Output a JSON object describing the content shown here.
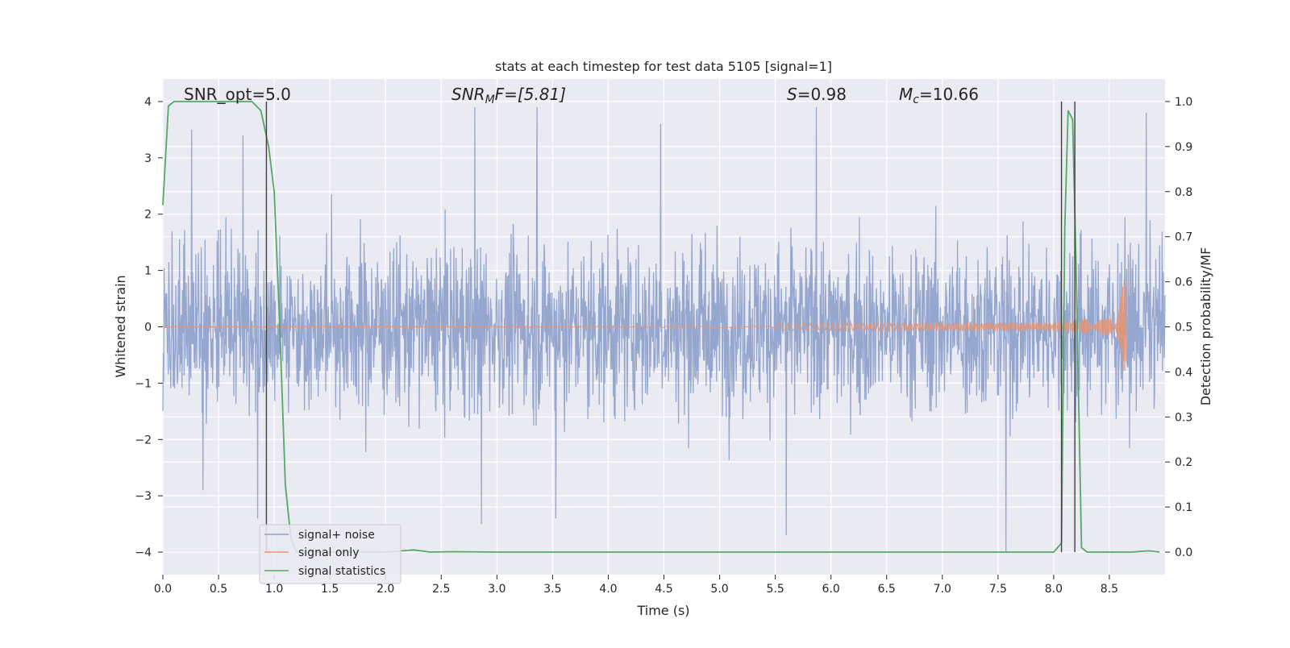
{
  "chart_data": {
    "type": "line",
    "title": "stats at each timestep for test data 5105 [signal=1]",
    "xlabel": "Time (s)",
    "ylabel_left": "Whitened strain",
    "ylabel_right": "Detection probability/MF",
    "xlim": [
      0.0,
      9.0
    ],
    "ylim_left": [
      -4.4,
      4.4
    ],
    "ylim_right": [
      -0.05,
      1.05
    ],
    "grid": true,
    "legend_position": "lower-left",
    "x_ticks": [
      "0.0",
      "0.5",
      "1.0",
      "1.5",
      "2.0",
      "2.5",
      "3.0",
      "3.5",
      "4.0",
      "4.5",
      "5.0",
      "5.5",
      "6.0",
      "6.5",
      "7.0",
      "7.5",
      "8.0",
      "8.5"
    ],
    "y_ticks_left": [
      "−4",
      "−3",
      "−2",
      "−1",
      "0",
      "1",
      "2",
      "3",
      "4"
    ],
    "y_ticks_right": [
      "0.0",
      "0.1",
      "0.2",
      "0.3",
      "0.4",
      "0.5",
      "0.6",
      "0.7",
      "0.8",
      "0.9",
      "1.0"
    ],
    "annotations": {
      "snr_opt": "SNR_opt=5.0",
      "snr_mf_label": "SNR",
      "snr_mf_sub": "M",
      "snr_mf_value": "F=[5.81]",
      "s_label": "S",
      "s_value": "=0.98",
      "mc_label": "M",
      "mc_sub": "c",
      "mc_value": "=10.66"
    },
    "vertical_lines_x": [
      0.93,
      8.07,
      8.19
    ],
    "series": [
      {
        "name": "signal+ noise",
        "color": "#8da0cb",
        "axis": "left",
        "description_x_range": [
          0.0,
          9.0
        ],
        "envelope_min": -3.9,
        "envelope_max": 3.9,
        "spike_points": [
          {
            "x": 0.26,
            "y": 3.5
          },
          {
            "x": 0.36,
            "y": -2.9
          },
          {
            "x": 0.72,
            "y": 3.4
          },
          {
            "x": 0.85,
            "y": -3.4
          },
          {
            "x": 2.8,
            "y": 3.9
          },
          {
            "x": 2.86,
            "y": -3.5
          },
          {
            "x": 3.36,
            "y": 3.9
          },
          {
            "x": 3.53,
            "y": -3.4
          },
          {
            "x": 4.47,
            "y": 3.6
          },
          {
            "x": 5.6,
            "y": -3.7
          },
          {
            "x": 5.87,
            "y": 3.9
          },
          {
            "x": 7.57,
            "y": -4.0
          },
          {
            "x": 8.83,
            "y": 3.8
          }
        ]
      },
      {
        "name": "signal only",
        "color": "#e59474",
        "axis": "left",
        "chirp_start_x": 5.5,
        "chirp_peak_x": 8.65,
        "chirp_peak_amplitude": 0.85
      },
      {
        "name": "signal statistics",
        "color": "#55a868",
        "axis": "right",
        "x": [
          0.0,
          0.05,
          0.1,
          0.2,
          0.5,
          0.8,
          0.88,
          0.95,
          1.0,
          1.05,
          1.1,
          1.15,
          1.2,
          1.5,
          2.0,
          2.25,
          2.4,
          2.6,
          3.0,
          5.0,
          8.0,
          8.07,
          8.1,
          8.13,
          8.17,
          8.2,
          8.25,
          8.3,
          8.5,
          8.7,
          8.85,
          8.95
        ],
        "y": [
          0.77,
          0.99,
          1.0,
          1.0,
          1.0,
          1.0,
          0.98,
          0.9,
          0.8,
          0.5,
          0.15,
          0.03,
          0.0,
          0.0,
          0.0,
          0.005,
          0.0,
          0.001,
          0.0,
          0.0,
          0.0,
          0.02,
          0.72,
          0.98,
          0.96,
          0.65,
          0.01,
          0.0,
          0.0,
          0.0,
          0.003,
          0.0
        ]
      }
    ]
  },
  "legend": [
    {
      "label": "signal+ noise",
      "color": "#8da0cb"
    },
    {
      "label": "signal only",
      "color": "#e59474"
    },
    {
      "label": "signal statistics",
      "color": "#55a868"
    }
  ]
}
